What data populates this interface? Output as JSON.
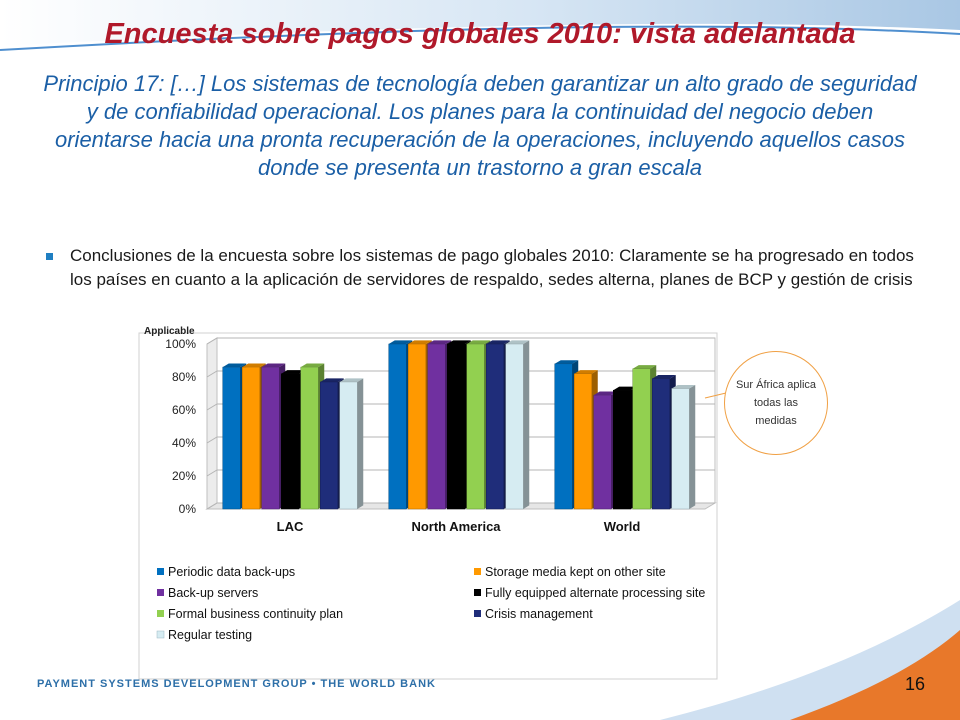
{
  "slide": {
    "title": "Encuesta sobre pagos globales 2010: vista adelantada",
    "subtitle": "Principio 17: […] Los sistemas de tecnología deben garantizar un alto grado de seguridad y de confiabilidad operacional. Los planes para la continuidad del negocio deben orientarse hacia una pronta recuperación de la operaciones, incluyendo aquellos casos donde se presenta un trastorno a gran escala",
    "bullet": "Conclusiones de la encuesta sobre los sistemas de pago globales 2010: Claramente se ha progresado en todos los países en cuanto a la aplicación de servidores de respaldo, sedes alterna, planes de BCP y gestión de crisis",
    "callout": "Sur África aplica todas las medidas",
    "footer": "PAYMENT SYSTEMS DEVELOPMENT GROUP • THE WORLD BANK",
    "page_number": "16"
  },
  "colors": {
    "title": "#b0192a",
    "subtitle": "#1b5fa6",
    "accent_orange": "#e8782a",
    "footer_blue": "#2d6fa8"
  },
  "chart_data": {
    "type": "bar",
    "ylabel": "Applicable",
    "categories": [
      "LAC",
      "North America",
      "World"
    ],
    "ylim": [
      0,
      100
    ],
    "yticks": [
      "0%",
      "20%",
      "40%",
      "60%",
      "80%",
      "100%"
    ],
    "grid": true,
    "legend_position": "bottom",
    "series": [
      {
        "name": "Periodic data back-ups",
        "color": "#0070c0",
        "values": [
          86,
          100,
          88
        ]
      },
      {
        "name": "Storage media kept on other site",
        "color": "#ff9900",
        "values": [
          86,
          100,
          82
        ]
      },
      {
        "name": "Back-up servers",
        "color": "#7030a0",
        "values": [
          86,
          100,
          69
        ]
      },
      {
        "name": "Fully equipped alternate processing site",
        "color": "#000000",
        "values": [
          82,
          100,
          72
        ]
      },
      {
        "name": "Formal business continuity plan",
        "color": "#92d050",
        "values": [
          86,
          100,
          85
        ]
      },
      {
        "name": "Crisis management",
        "color": "#1f2d7a",
        "values": [
          77,
          100,
          79
        ]
      },
      {
        "name": "Regular testing",
        "color": "#d6ecf2",
        "values": [
          77,
          100,
          73
        ]
      }
    ]
  }
}
